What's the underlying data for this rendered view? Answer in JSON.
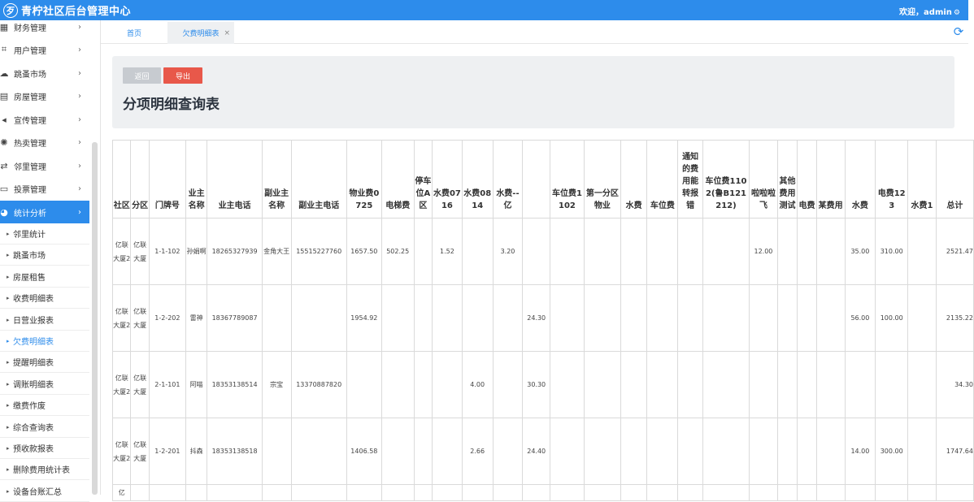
{
  "app": {
    "logo_glyph": "⽍",
    "title": "青柠社区后台管理中心",
    "welcome": "欢迎，admin",
    "accent_color": "#2d8ceb",
    "export_color": "#e8584a"
  },
  "sidebar": {
    "menu": [
      {
        "icon": "calculator-icon",
        "glyph": "▦",
        "label": "财务管理"
      },
      {
        "icon": "crop-icon",
        "glyph": "⌗",
        "label": "用户管理"
      },
      {
        "icon": "cloud-icon",
        "glyph": "☁",
        "label": "跳蚤市场"
      },
      {
        "icon": "building-icon",
        "glyph": "▤",
        "label": "房屋管理"
      },
      {
        "icon": "volume-icon",
        "glyph": "◂",
        "label": "宣传管理"
      },
      {
        "icon": "sun-icon",
        "glyph": "✺",
        "label": "热卖管理"
      },
      {
        "icon": "retweet-icon",
        "glyph": "⇄",
        "label": "邻里管理"
      },
      {
        "icon": "file-icon",
        "glyph": "▭",
        "label": "投票管理"
      },
      {
        "icon": "pie-chart-icon",
        "glyph": "◕",
        "label": "统计分析"
      }
    ],
    "submenu": [
      "邻里统计",
      "跳蚤市场",
      "房屋租售",
      "收费明细表",
      "日营业报表",
      "欠费明细表",
      "提醒明细表",
      "调账明细表",
      "缴费作废",
      "综合查询表",
      "预收款报表",
      "删除费用统计表",
      "设备台账汇总"
    ]
  },
  "tabs": {
    "home": "首页",
    "current": "欠费明细表",
    "close": "×"
  },
  "panel": {
    "back_label": "返回",
    "export_label": "导出",
    "title": "分项明细查询表"
  },
  "table": {
    "headers": [
      "社区",
      "分区",
      "门牌号",
      "业主名称",
      "业主电话",
      "副业主名称",
      "副业主电话",
      "物业费0725",
      "电梯费",
      "停车位A区",
      "水费0716",
      "水费0814",
      "水费--亿",
      "",
      "车位费1102",
      "第一分区物业",
      "水费",
      "车位费",
      "通知的费用能转报错",
      "车位费1102(鲁B121212)",
      "啦啦啦飞",
      "其他费用测试",
      "电费",
      "某费用",
      "水费",
      "电费123",
      "水费1",
      "总计"
    ],
    "rows": [
      [
        "亿联大厦2",
        "亿联大厦",
        "1-1-102",
        "孙娟啊",
        "18265327939",
        "金角大王",
        "15515227760",
        "1657.50",
        "502.25",
        "",
        "1.52",
        "",
        "3.20",
        "",
        "",
        "",
        "",
        "",
        "",
        "",
        "12.00",
        "",
        "",
        "",
        "35.00",
        "310.00",
        "",
        "2521.47"
      ],
      [
        "亿联大厦2",
        "亿联大厦",
        "1-2-202",
        "雷神",
        "18367789087",
        "",
        "",
        "1954.92",
        "",
        "",
        "",
        "",
        "",
        "24.30",
        "",
        "",
        "",
        "",
        "",
        "",
        "",
        "",
        "",
        "",
        "56.00",
        "100.00",
        "",
        "2135.22"
      ],
      [
        "亿联大厦2",
        "亿联大厦",
        "2-1-101",
        "阿喵",
        "18353138514",
        "宗宝",
        "13370887820",
        "",
        "",
        "",
        "",
        "4.00",
        "",
        "30.30",
        "",
        "",
        "",
        "",
        "",
        "",
        "",
        "",
        "",
        "",
        "",
        "",
        "",
        "34.30"
      ],
      [
        "亿联大厦2",
        "亿联大厦",
        "1-2-201",
        "抖森",
        "18353138518",
        "",
        "",
        "1406.58",
        "",
        "",
        "",
        "2.66",
        "",
        "24.40",
        "",
        "",
        "",
        "",
        "",
        "",
        "",
        "",
        "",
        "",
        "14.00",
        "300.00",
        "",
        "1747.64"
      ],
      [
        "亿",
        "",
        "",
        "",
        "",
        "",
        "",
        "",
        "",
        "",
        "",
        "",
        "",
        "",
        "",
        "",
        "",
        "",
        "",
        "",
        "",
        "",
        "",
        "",
        "",
        "",
        "",
        ""
      ]
    ]
  }
}
